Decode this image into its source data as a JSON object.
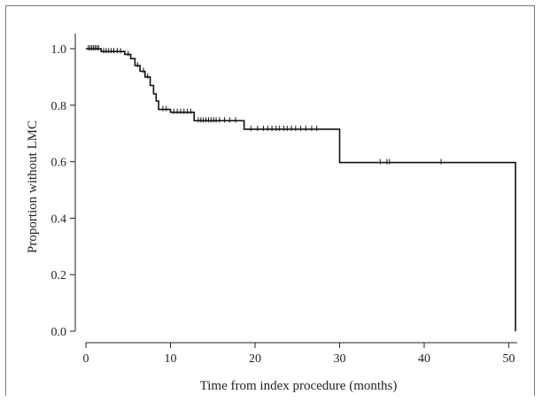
{
  "chart_data": {
    "type": "line",
    "title": "",
    "xlabel": "Time from index procedure (months)",
    "ylabel": "Proportion without LMC",
    "xlim": [
      0,
      51
    ],
    "ylim": [
      0,
      1.0
    ],
    "x_ticks": [
      0,
      10,
      20,
      30,
      40,
      50
    ],
    "y_ticks": [
      "0.0",
      "0.2",
      "0.4",
      "0.6",
      "0.8",
      "1.0"
    ],
    "y_tick_values": [
      0,
      0.2,
      0.4,
      0.6,
      0.8,
      1.0
    ],
    "grid": false,
    "series": [
      {
        "step_points": [
          [
            0,
            1.0
          ],
          [
            1.8,
            1.0
          ],
          [
            1.8,
            0.99
          ],
          [
            4.6,
            0.99
          ],
          [
            4.6,
            0.98
          ],
          [
            5.3,
            0.98
          ],
          [
            5.3,
            0.965
          ],
          [
            5.8,
            0.965
          ],
          [
            5.8,
            0.94
          ],
          [
            6.4,
            0.94
          ],
          [
            6.4,
            0.92
          ],
          [
            7.0,
            0.92
          ],
          [
            7.0,
            0.9
          ],
          [
            7.6,
            0.9
          ],
          [
            7.6,
            0.87
          ],
          [
            8.0,
            0.87
          ],
          [
            8.0,
            0.84
          ],
          [
            8.3,
            0.84
          ],
          [
            8.3,
            0.815
          ],
          [
            8.6,
            0.815
          ],
          [
            8.6,
            0.785
          ],
          [
            10.0,
            0.785
          ],
          [
            10.0,
            0.775
          ],
          [
            12.8,
            0.775
          ],
          [
            12.8,
            0.745
          ],
          [
            18.7,
            0.745
          ],
          [
            18.7,
            0.715
          ],
          [
            30.0,
            0.715
          ],
          [
            30.0,
            0.597
          ],
          [
            50.8,
            0.597
          ],
          [
            50.8,
            0.0
          ]
        ],
        "censored": [
          [
            0.3,
            1.0
          ],
          [
            0.5,
            1.0
          ],
          [
            0.7,
            1.0
          ],
          [
            0.9,
            1.0
          ],
          [
            1.1,
            1.0
          ],
          [
            1.3,
            1.0
          ],
          [
            1.5,
            1.0
          ],
          [
            2.1,
            0.99
          ],
          [
            2.4,
            0.99
          ],
          [
            2.7,
            0.99
          ],
          [
            3.0,
            0.99
          ],
          [
            3.3,
            0.99
          ],
          [
            3.7,
            0.99
          ],
          [
            4.1,
            0.99
          ],
          [
            5.0,
            0.98
          ],
          [
            6.1,
            0.94
          ],
          [
            6.8,
            0.92
          ],
          [
            7.3,
            0.9
          ],
          [
            9.1,
            0.785
          ],
          [
            9.5,
            0.785
          ],
          [
            10.4,
            0.775
          ],
          [
            10.8,
            0.775
          ],
          [
            11.2,
            0.775
          ],
          [
            11.6,
            0.775
          ],
          [
            12.0,
            0.775
          ],
          [
            12.4,
            0.775
          ],
          [
            13.3,
            0.745
          ],
          [
            13.6,
            0.745
          ],
          [
            13.9,
            0.745
          ],
          [
            14.2,
            0.745
          ],
          [
            14.5,
            0.745
          ],
          [
            14.8,
            0.745
          ],
          [
            15.1,
            0.745
          ],
          [
            15.4,
            0.745
          ],
          [
            15.8,
            0.745
          ],
          [
            16.4,
            0.745
          ],
          [
            17.0,
            0.745
          ],
          [
            17.7,
            0.745
          ],
          [
            19.5,
            0.715
          ],
          [
            20.3,
            0.715
          ],
          [
            21.0,
            0.715
          ],
          [
            21.5,
            0.715
          ],
          [
            22.0,
            0.715
          ],
          [
            22.5,
            0.715
          ],
          [
            22.9,
            0.715
          ],
          [
            23.4,
            0.715
          ],
          [
            23.8,
            0.715
          ],
          [
            24.3,
            0.715
          ],
          [
            24.8,
            0.715
          ],
          [
            25.4,
            0.715
          ],
          [
            26.0,
            0.715
          ],
          [
            26.7,
            0.715
          ],
          [
            27.3,
            0.715
          ],
          [
            34.8,
            0.597
          ],
          [
            35.6,
            0.597
          ],
          [
            35.9,
            0.597
          ],
          [
            42.0,
            0.597
          ]
        ]
      }
    ]
  }
}
